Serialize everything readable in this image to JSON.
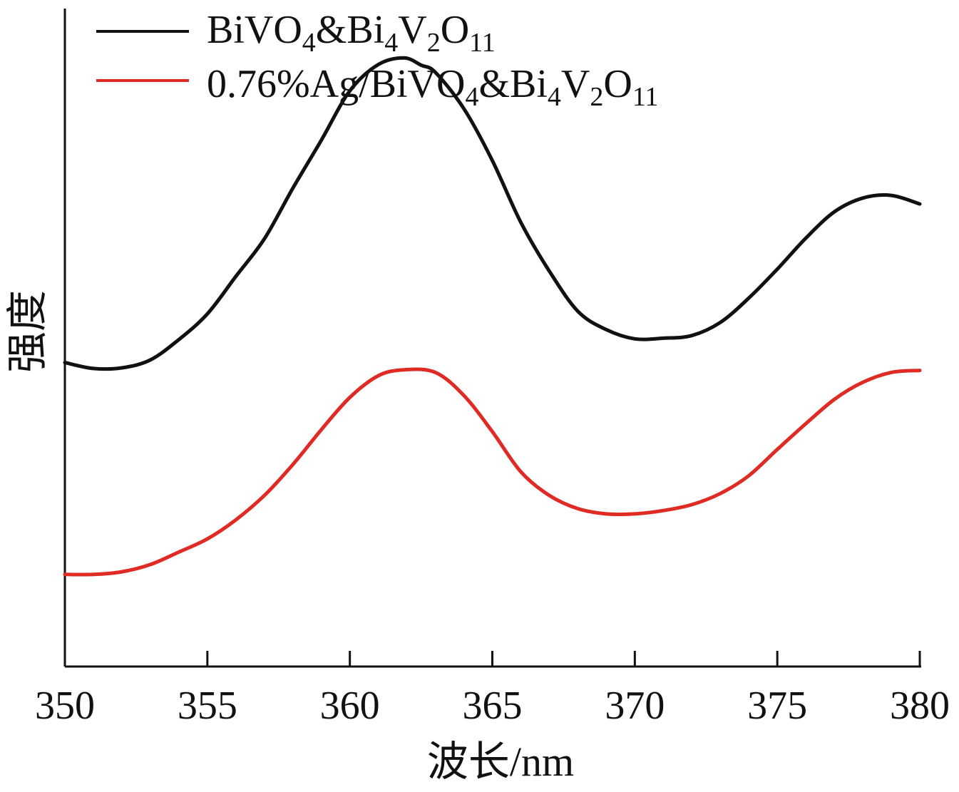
{
  "chart_data": {
    "type": "line",
    "xlabel": "波长/nm",
    "ylabel": "强度",
    "xlim": [
      350,
      380
    ],
    "y_ticks_shown": false,
    "x_ticks": [
      350,
      355,
      360,
      365,
      370,
      375,
      380
    ],
    "x_tick_labels": [
      "350",
      "355",
      "360",
      "365",
      "370",
      "375",
      "380"
    ],
    "grid": false,
    "legend_position": "top-left",
    "series": [
      {
        "name": "BiVO4&Bi4V2O11",
        "color": "#111111",
        "x": [
          350,
          351,
          352,
          353,
          354,
          355,
          356,
          357,
          358,
          359,
          360,
          361,
          361.9,
          362.5,
          363,
          364,
          365,
          366,
          367,
          368,
          369,
          370,
          371,
          372,
          373,
          374,
          375,
          376,
          377,
          378,
          379,
          380
        ],
        "values": [
          0.462,
          0.453,
          0.454,
          0.466,
          0.497,
          0.536,
          0.593,
          0.65,
          0.727,
          0.8,
          0.875,
          0.915,
          0.925,
          0.914,
          0.903,
          0.848,
          0.769,
          0.675,
          0.601,
          0.54,
          0.512,
          0.498,
          0.499,
          0.503,
          0.523,
          0.56,
          0.604,
          0.651,
          0.691,
          0.712,
          0.716,
          0.703
        ]
      },
      {
        "name": "0.76%Ag/BiVO4&Bi4V2O11",
        "color": "#e02a24",
        "x": [
          350,
          351,
          352,
          353,
          354,
          355,
          356,
          357,
          358,
          359,
          360,
          361,
          361.9,
          363,
          364,
          365,
          366,
          367,
          368,
          369,
          370,
          371,
          372,
          373,
          374,
          375,
          376,
          377,
          378,
          379,
          380
        ],
        "values": [
          0.14,
          0.14,
          0.144,
          0.155,
          0.174,
          0.194,
          0.223,
          0.26,
          0.307,
          0.36,
          0.409,
          0.442,
          0.451,
          0.447,
          0.412,
          0.357,
          0.296,
          0.26,
          0.24,
          0.232,
          0.232,
          0.237,
          0.246,
          0.263,
          0.29,
          0.33,
          0.369,
          0.406,
          0.432,
          0.447,
          0.45
        ]
      }
    ]
  }
}
